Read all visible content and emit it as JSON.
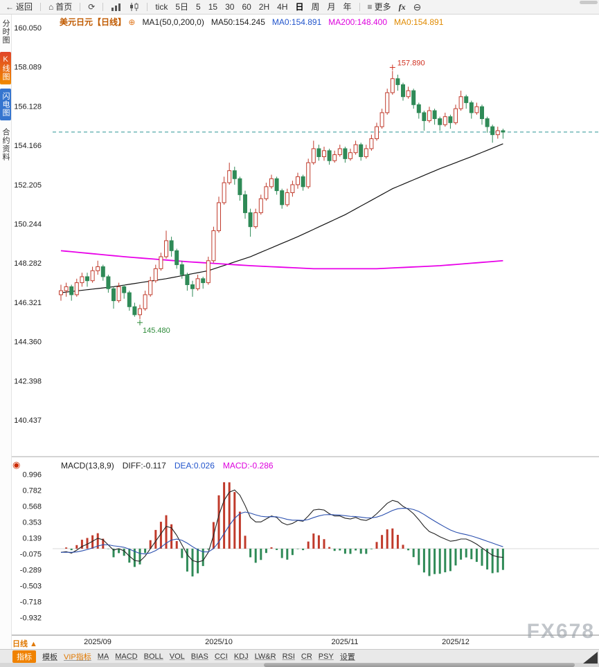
{
  "toolbar": {
    "back_label": "返回",
    "home_label": "首页",
    "intervals": [
      "tick",
      "5日",
      "5",
      "15",
      "30",
      "60",
      "2H",
      "4H",
      "日",
      "周",
      "月",
      "年"
    ],
    "selected_interval": "日",
    "more_label": "更多",
    "fx_label": "fx"
  },
  "icons": {
    "back": "←",
    "home": "⌂",
    "refresh": "⟳",
    "more": "≡",
    "zoom_out": "⊖",
    "add": "⊕",
    "indicator_dot": "◉"
  },
  "sidebar": {
    "items": [
      {
        "label": "分时图",
        "selected": false
      },
      {
        "label": "K线图",
        "selected": true
      },
      {
        "label": "闪电图",
        "selected": false
      },
      {
        "label": "合约资料",
        "selected": false
      }
    ]
  },
  "chart_header": {
    "symbol": "美元日元",
    "period": "【日线】",
    "ma_settings": "MA1(50,0,200,0)",
    "ma50": "MA50:154.245",
    "ma0_blue": "MA0:154.891",
    "ma200": "MA200:148.400",
    "ma0_orange": "MA0:154.891"
  },
  "macd_header": {
    "title": "MACD(13,8,9)",
    "diff": "DIFF:-0.117",
    "dea": "DEA:0.026",
    "macd": "MACD:-0.286"
  },
  "bottom": {
    "period_label": "日线 ▲",
    "tabs": [
      "指标",
      "模板",
      "VIP指标",
      "MA",
      "MACD",
      "BOLL",
      "VOL",
      "BIAS",
      "CCI",
      "KDJ",
      "LW&R",
      "RSI",
      "CR",
      "PSY",
      "设置"
    ],
    "selected_tab": "指标"
  },
  "watermark": "FX678",
  "chart_data": {
    "type": "candlestick",
    "symbol": "美元日元 (USD/JPY)",
    "interval": "日线 daily",
    "y_tick_labels": [
      "160.050",
      "158.089",
      "156.128",
      "154.166",
      "152.205",
      "150.244",
      "148.282",
      "146.321",
      "144.360",
      "142.398",
      "140.437"
    ],
    "y_range": [
      140.437,
      160.05
    ],
    "x_labels": [
      "2025/09",
      "2025/10",
      "2025/11",
      "2025/12"
    ],
    "x_label_indices": [
      7,
      30,
      54,
      75
    ],
    "last_price": 154.83,
    "high_annotation": {
      "index": 63,
      "price": 157.89,
      "label": "157.890"
    },
    "low_annotation": {
      "index": 15,
      "price": 145.48,
      "label": "145.480"
    },
    "ma50_anchors": [
      [
        0,
        146.8
      ],
      [
        10,
        147.1
      ],
      [
        20,
        147.5
      ],
      [
        28,
        147.9
      ],
      [
        36,
        148.6
      ],
      [
        45,
        149.6
      ],
      [
        54,
        150.7
      ],
      [
        63,
        152.0
      ],
      [
        72,
        153.0
      ],
      [
        78,
        153.6
      ],
      [
        84,
        154.245
      ]
    ],
    "ma200_anchors": [
      [
        0,
        148.9
      ],
      [
        12,
        148.6
      ],
      [
        24,
        148.35
      ],
      [
        36,
        148.15
      ],
      [
        48,
        148.0
      ],
      [
        60,
        148.0
      ],
      [
        72,
        148.15
      ],
      [
        84,
        148.4
      ]
    ],
    "candles_ohlc": [
      [
        146.7,
        147.2,
        146.4,
        146.9
      ],
      [
        146.9,
        147.3,
        146.6,
        147.1
      ],
      [
        147.1,
        147.2,
        146.4,
        146.7
      ],
      [
        146.7,
        147.5,
        146.6,
        147.3
      ],
      [
        147.3,
        147.8,
        147.1,
        147.6
      ],
      [
        147.6,
        147.8,
        147.1,
        147.4
      ],
      [
        147.4,
        148.1,
        147.3,
        147.9
      ],
      [
        147.9,
        148.4,
        147.7,
        148.1
      ],
      [
        148.1,
        148.2,
        147.4,
        147.6
      ],
      [
        147.6,
        147.7,
        146.8,
        147.0
      ],
      [
        147.0,
        147.1,
        146.0,
        146.4
      ],
      [
        146.4,
        147.3,
        146.3,
        147.1
      ],
      [
        147.1,
        147.2,
        146.5,
        146.8
      ],
      [
        146.8,
        146.9,
        145.9,
        146.1
      ],
      [
        146.1,
        146.3,
        145.6,
        145.7
      ],
      [
        145.7,
        146.2,
        145.48,
        146.0
      ],
      [
        146.0,
        146.9,
        145.9,
        146.7
      ],
      [
        146.7,
        147.6,
        146.6,
        147.4
      ],
      [
        147.4,
        148.2,
        147.3,
        148.0
      ],
      [
        148.0,
        148.8,
        147.9,
        148.6
      ],
      [
        148.6,
        149.9,
        148.5,
        149.4
      ],
      [
        149.4,
        149.6,
        148.6,
        148.9
      ],
      [
        148.9,
        149.0,
        148.0,
        148.2
      ],
      [
        148.2,
        148.4,
        147.5,
        147.7
      ],
      [
        147.7,
        147.8,
        146.9,
        147.2
      ],
      [
        147.2,
        147.4,
        146.6,
        147.0
      ],
      [
        147.0,
        147.7,
        146.9,
        147.5
      ],
      [
        147.5,
        147.6,
        147.0,
        147.3
      ],
      [
        147.3,
        148.6,
        147.2,
        148.4
      ],
      [
        148.4,
        150.1,
        148.3,
        149.9
      ],
      [
        149.9,
        151.6,
        149.8,
        151.3
      ],
      [
        151.3,
        152.6,
        151.2,
        152.3
      ],
      [
        152.3,
        153.3,
        152.2,
        152.9
      ],
      [
        152.9,
        153.1,
        152.2,
        152.5
      ],
      [
        152.5,
        152.6,
        151.4,
        151.7
      ],
      [
        151.7,
        151.9,
        150.5,
        150.8
      ],
      [
        150.8,
        151.0,
        149.6,
        150.1
      ],
      [
        150.1,
        151.0,
        150.0,
        150.8
      ],
      [
        150.8,
        151.7,
        150.7,
        151.5
      ],
      [
        151.5,
        152.3,
        151.4,
        152.1
      ],
      [
        152.1,
        152.7,
        152.0,
        152.5
      ],
      [
        152.5,
        152.6,
        151.7,
        151.9
      ],
      [
        151.9,
        152.0,
        151.0,
        151.2
      ],
      [
        151.2,
        152.0,
        151.1,
        151.8
      ],
      [
        151.8,
        152.4,
        151.6,
        152.2
      ],
      [
        152.2,
        152.8,
        152.0,
        152.6
      ],
      [
        152.6,
        152.7,
        151.9,
        152.1
      ],
      [
        152.1,
        153.5,
        152.0,
        153.3
      ],
      [
        153.3,
        154.4,
        153.2,
        154.0
      ],
      [
        154.0,
        154.2,
        153.4,
        153.6
      ],
      [
        153.6,
        154.1,
        153.4,
        153.9
      ],
      [
        153.9,
        154.0,
        153.2,
        153.4
      ],
      [
        153.4,
        153.9,
        153.3,
        153.7
      ],
      [
        153.7,
        154.2,
        153.6,
        154.0
      ],
      [
        154.0,
        154.1,
        153.3,
        153.5
      ],
      [
        153.5,
        154.0,
        153.4,
        153.8
      ],
      [
        153.8,
        154.4,
        153.7,
        154.2
      ],
      [
        154.2,
        154.3,
        153.4,
        153.6
      ],
      [
        153.6,
        154.2,
        153.5,
        154.0
      ],
      [
        154.0,
        154.7,
        153.9,
        154.5
      ],
      [
        154.5,
        155.3,
        154.4,
        155.1
      ],
      [
        155.1,
        156.0,
        155.0,
        155.8
      ],
      [
        155.8,
        157.0,
        155.7,
        156.8
      ],
      [
        156.8,
        157.89,
        156.7,
        157.5
      ],
      [
        157.5,
        157.7,
        156.9,
        157.2
      ],
      [
        157.2,
        157.3,
        156.4,
        156.6
      ],
      [
        156.6,
        157.1,
        156.5,
        156.9
      ],
      [
        156.9,
        157.0,
        156.0,
        156.2
      ],
      [
        156.2,
        156.3,
        155.5,
        155.8
      ],
      [
        155.8,
        155.9,
        154.9,
        155.4
      ],
      [
        155.4,
        156.1,
        155.3,
        155.9
      ],
      [
        155.9,
        156.0,
        155.2,
        155.5
      ],
      [
        155.5,
        155.6,
        154.9,
        155.2
      ],
      [
        155.2,
        155.8,
        155.1,
        155.6
      ],
      [
        155.6,
        155.7,
        155.0,
        155.3
      ],
      [
        155.3,
        156.2,
        155.2,
        156.0
      ],
      [
        156.0,
        156.9,
        155.9,
        156.6
      ],
      [
        156.6,
        156.7,
        156.0,
        156.3
      ],
      [
        156.3,
        156.4,
        155.5,
        155.8
      ],
      [
        155.8,
        156.3,
        155.7,
        156.1
      ],
      [
        156.1,
        156.2,
        155.2,
        155.5
      ],
      [
        155.5,
        155.6,
        154.8,
        155.1
      ],
      [
        155.1,
        155.2,
        154.3,
        154.7
      ],
      [
        154.7,
        155.1,
        154.5,
        154.9
      ],
      [
        154.9,
        155.0,
        154.5,
        154.83
      ]
    ],
    "macd": {
      "params": [
        13,
        8,
        9
      ],
      "diff_value": -0.117,
      "dea_value": 0.026,
      "macd_value": -0.286,
      "y_tick_labels": [
        "0.996",
        "0.782",
        "0.568",
        "0.353",
        "0.139",
        "-0.075",
        "-0.289",
        "-0.503",
        "-0.718",
        "-0.932"
      ],
      "y_range": [
        -0.932,
        0.996
      ],
      "diff_series": [
        -0.05,
        -0.04,
        -0.06,
        -0.02,
        0.03,
        0.06,
        0.1,
        0.14,
        0.12,
        0.05,
        -0.02,
        0.0,
        -0.03,
        -0.1,
        -0.16,
        -0.17,
        -0.1,
        0.0,
        0.1,
        0.2,
        0.3,
        0.28,
        0.18,
        0.05,
        -0.08,
        -0.16,
        -0.18,
        -0.16,
        -0.05,
        0.18,
        0.45,
        0.65,
        0.76,
        0.79,
        0.72,
        0.58,
        0.42,
        0.36,
        0.36,
        0.4,
        0.44,
        0.42,
        0.35,
        0.32,
        0.34,
        0.38,
        0.37,
        0.44,
        0.52,
        0.53,
        0.52,
        0.47,
        0.44,
        0.44,
        0.41,
        0.4,
        0.42,
        0.39,
        0.38,
        0.41,
        0.47,
        0.54,
        0.61,
        0.65,
        0.63,
        0.57,
        0.53,
        0.47,
        0.39,
        0.3,
        0.23,
        0.2,
        0.16,
        0.13,
        0.1,
        0.11,
        0.13,
        0.13,
        0.1,
        0.06,
        0.01,
        -0.04,
        -0.09,
        -0.11,
        -0.117
      ],
      "dea_series": [
        -0.05,
        -0.048,
        -0.05,
        -0.044,
        -0.03,
        -0.012,
        0.01,
        0.036,
        0.053,
        0.052,
        0.038,
        0.03,
        0.018,
        -0.006,
        -0.037,
        -0.064,
        -0.071,
        -0.057,
        -0.026,
        0.019,
        0.075,
        0.116,
        0.129,
        0.113,
        0.074,
        0.027,
        -0.014,
        -0.043,
        -0.044,
        0.001,
        0.091,
        0.203,
        0.314,
        0.409,
        0.471,
        0.493,
        0.478,
        0.455,
        0.436,
        0.429,
        0.431,
        0.429,
        0.413,
        0.394,
        0.383,
        0.383,
        0.38,
        0.392,
        0.418,
        0.44,
        0.456,
        0.459,
        0.455,
        0.452,
        0.444,
        0.435,
        0.432,
        0.424,
        0.415,
        0.414,
        0.425,
        0.448,
        0.48,
        0.514,
        0.537,
        0.544,
        0.541,
        0.527,
        0.5,
        0.46,
        0.414,
        0.371,
        0.329,
        0.289,
        0.251,
        0.223,
        0.204,
        0.189,
        0.171,
        0.149,
        0.125,
        0.1,
        0.075,
        0.05,
        0.026
      ]
    },
    "colors": {
      "up": "#c03a2b",
      "down": "#2f8a57",
      "ma50_line": "#111111",
      "ma200_line": "#e800e8",
      "diff_line": "#222222",
      "dea_line": "#2a4fae",
      "last_price_line": "#2a9595",
      "high_label": "#d03020",
      "low_label": "#2e8b3a"
    }
  }
}
